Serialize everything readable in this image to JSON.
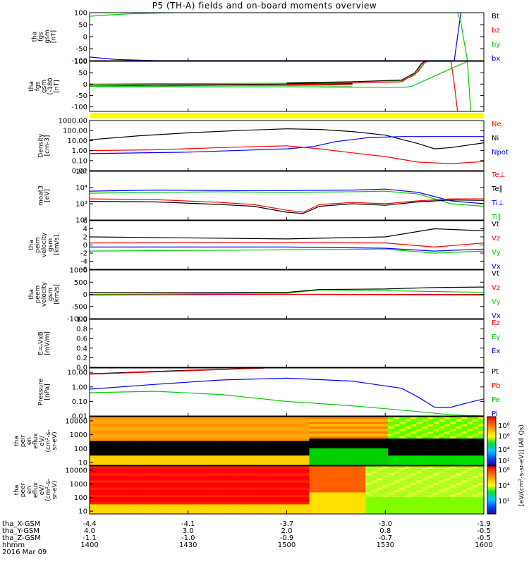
{
  "title": "P5 (TH-A) fields and on-board moments overview",
  "chart_data": {
    "type": "line",
    "panels": [
      {
        "id": "fgs",
        "ylabel": [
          "tha",
          "fgs",
          "gsm",
          "[nT]"
        ],
        "ylim": [
          -100,
          100
        ],
        "yticks": [
          "100",
          "50",
          "0",
          "-50",
          "-100"
        ],
        "ytick_values": [
          100,
          50,
          0,
          -50,
          -100
        ],
        "scale": "linear",
        "legend": [
          {
            "name": "Bt",
            "color": "#000000"
          },
          {
            "name": "bz",
            "color": "#ff0000"
          },
          {
            "name": "by",
            "color": "#00cc00"
          },
          {
            "name": "bx",
            "color": "#0000ff"
          }
        ],
        "series": [
          {
            "name": "by",
            "color": "#00cc00",
            "x": [
              1400,
              1405,
              1412,
              1420,
              1426
            ],
            "y": [
              85,
              90,
              95,
              98,
              100
            ]
          },
          {
            "name": "bx",
            "color": "#0000ff",
            "x": [
              1400,
              1404,
              1408,
              1420,
              1500,
              1540,
              1551,
              1552,
              1553
            ],
            "y": [
              -85,
              -90,
              -95,
              -100,
              -100,
              -100,
              -100,
              0,
              100
            ]
          },
          {
            "name": "by",
            "color": "#00cc00",
            "x": [
              1552,
              1553,
              1554,
              1555
            ],
            "y": [
              100,
              60,
              -20,
              -100
            ]
          }
        ]
      },
      {
        "id": "fgs_zoom",
        "ylabel": [
          "tha",
          "fgs",
          "gsm",
          "(-180",
          "[nT]"
        ],
        "ylim": [
          -120,
          100
        ],
        "yticks": [
          "100",
          "50",
          "0",
          "-50",
          "-100"
        ],
        "ytick_values": [
          100,
          50,
          0,
          -50,
          -100
        ],
        "scale": "linear",
        "legend": [],
        "series": [
          {
            "name": "by",
            "color": "#00cc00",
            "x": [
              1400,
              1420,
              1440,
              1460,
              1480,
              1500,
              1520,
              1535,
              1539,
              1541,
              1542
            ],
            "y": [
              0,
              2,
              3,
              4,
              5,
              6,
              10,
              15,
              40,
              85,
              100
            ]
          },
          {
            "name": "Bt",
            "color": "#000000",
            "x": [
              1400,
              1420,
              1440,
              1460,
              1480,
              1500,
              1520,
              1535,
              1539,
              1541,
              1542
            ],
            "y": [
              -5,
              -3,
              -2,
              0,
              2,
              4,
              10,
              18,
              50,
              90,
              100
            ]
          },
          {
            "name": "bz",
            "color": "#ff0000",
            "x": [
              1400,
              1420,
              1440,
              1460,
              1480,
              1500,
              1520,
              1535,
              1540,
              1542,
              1543,
              1550,
              1551,
              1552
            ],
            "y": [
              -5,
              -8,
              -5,
              -6,
              -3,
              -2,
              5,
              10,
              55,
              95,
              100,
              100,
              0,
              -120
            ]
          },
          {
            "name": "by",
            "color": "#00cc00",
            "x": [
              1400,
              1440,
              1480,
              1510,
              1530,
              1536,
              1538,
              1555,
              1556
            ],
            "y": [
              -10,
              -12,
              -12,
              -13,
              -14,
              -14,
              -10,
              100,
              -120
            ]
          }
        ]
      },
      {
        "id": "mom",
        "ylabel": [
          "Density",
          "[cm-3]"
        ],
        "ylim": [
          0.01,
          1000
        ],
        "yticks": [
          "1000.00",
          "100.00",
          "10.00",
          "1.00",
          "0.10",
          "0.01"
        ],
        "ytick_values": [
          1000,
          100,
          10,
          1,
          0.1,
          0.01
        ],
        "scale": "log",
        "legend": [
          {
            "name": "Ne",
            "color": "#ff0000"
          },
          {
            "name": "Ni",
            "color": "#000000"
          },
          {
            "name": "Npot",
            "color": "#0000ff"
          }
        ],
        "series": [
          {
            "name": "Ni",
            "color": "#000000",
            "x": [
              1400,
              1415,
              1430,
              1445,
              1500,
              1510,
              1520,
              1530,
              1540,
              1545,
              1550,
              1560
            ],
            "y": [
              12,
              30,
              60,
              100,
              150,
              130,
              80,
              35,
              5,
              1.5,
              2,
              6
            ]
          },
          {
            "name": "Npot",
            "color": "#0000ff",
            "x": [
              1400,
              1430,
              1500,
              1508,
              1515,
              1525,
              1535,
              1560
            ],
            "y": [
              0.5,
              0.7,
              1.5,
              2.5,
              8,
              20,
              25,
              25
            ]
          },
          {
            "name": "Ne",
            "color": "#ff0000",
            "x": [
              1400,
              1420,
              1440,
              1500,
              1510,
              1520,
              1530,
              1540,
              1550,
              1560
            ],
            "y": [
              1,
              1.2,
              2,
              3,
              1.5,
              0.6,
              0.25,
              0.07,
              0.05,
              0.08
            ]
          }
        ]
      },
      {
        "id": "temp",
        "ylabel": [
          "moat3",
          "[eV]"
        ],
        "ylim": [
          100,
          100000
        ],
        "yticks": [
          "10⁵",
          "10⁴",
          "10³",
          "10²"
        ],
        "ytick_values": [
          100000,
          10000,
          1000,
          100
        ],
        "scale": "log",
        "legend": [
          {
            "name": "Te⊥",
            "color": "#ff0000"
          },
          {
            "name": "Te∥",
            "color": "#000000"
          },
          {
            "name": "Ti⊥",
            "color": "#0000ff"
          },
          {
            "name": "Ti∥",
            "color": "#00cc00"
          }
        ],
        "series": [
          {
            "name": "Ti⊥",
            "color": "#0000ff",
            "x": [
              1400,
              1420,
              1440,
              1500,
              1520,
              1530,
              1540,
              1550,
              1560
            ],
            "y": [
              6000,
              7000,
              6500,
              6500,
              7000,
              8000,
              5000,
              1500,
              1000
            ]
          },
          {
            "name": "Ti∥",
            "color": "#00cc00",
            "x": [
              1400,
              1420,
              1440,
              1500,
              1520,
              1530,
              1540,
              1550,
              1560
            ],
            "y": [
              4500,
              5000,
              5500,
              5000,
              5500,
              6000,
              4000,
              1000,
              700
            ]
          },
          {
            "name": "Te⊥",
            "color": "#ff0000",
            "x": [
              1400,
              1420,
              1440,
              1450,
              1500,
              1505,
              1510,
              1520,
              1530,
              1540,
              1550,
              1560
            ],
            "y": [
              2000,
              1800,
              1200,
              900,
              400,
              300,
              900,
              1200,
              1000,
              1500,
              2000,
              2000
            ]
          },
          {
            "name": "Te∥",
            "color": "#000000",
            "x": [
              1400,
              1420,
              1440,
              1450,
              1500,
              1505,
              1510,
              1520,
              1530,
              1540,
              1550,
              1560
            ],
            "y": [
              1400,
              1300,
              900,
              700,
              300,
              250,
              700,
              1000,
              800,
              1300,
              1700,
              1600
            ]
          }
        ]
      },
      {
        "id": "vel_pe",
        "ylabel": [
          "tha",
          "peim",
          "velocity",
          "gsm",
          "[km/s]"
        ],
        "ylim": [
          -6,
          6
        ],
        "yticks": [
          "6",
          "4",
          "2",
          "0",
          "-2",
          "-4",
          "-6"
        ],
        "ytick_values": [
          6,
          4,
          2,
          0,
          -2,
          -4,
          -6
        ],
        "scale": "linear",
        "legend": [
          {
            "name": "Vt",
            "color": "#000000"
          },
          {
            "name": "Vz",
            "color": "#ff0000"
          },
          {
            "name": "Vy",
            "color": "#00cc00"
          },
          {
            "name": "Vx",
            "color": "#0000ff"
          }
        ],
        "series": [
          {
            "name": "Vx",
            "color": "#0000ff",
            "x": [
              1400,
              1500,
              1530,
              1545,
              1560
            ],
            "y": [
              -0.5,
              -0.5,
              -0.8,
              -1.5,
              -1
            ]
          },
          {
            "name": "Vy",
            "color": "#00cc00",
            "x": [
              1400,
              1500,
              1530,
              1545,
              1560
            ],
            "y": [
              -1.5,
              -1.2,
              -1,
              -2,
              -1.5
            ]
          },
          {
            "name": "Vz",
            "color": "#ff0000",
            "x": [
              1400,
              1500,
              1530,
              1545,
              1560
            ],
            "y": [
              0.5,
              0.6,
              0.5,
              -0.5,
              0.5
            ]
          },
          {
            "name": "Vt",
            "color": "#000000",
            "x": [
              1400,
              1500,
              1530,
              1545,
              1560
            ],
            "y": [
              2,
              1.5,
              2,
              4,
              3.5
            ]
          }
        ]
      },
      {
        "id": "vel_ee",
        "ylabel": [
          "tha",
          "peem",
          "velocity",
          "gsm",
          "[km/s]"
        ],
        "ylim": [
          -1000,
          1000
        ],
        "yticks": [
          "1000",
          "500",
          "0",
          "-500",
          "-1000"
        ],
        "ytick_values": [
          1000,
          500,
          0,
          -500,
          -1000
        ],
        "scale": "linear",
        "legend": [
          {
            "name": "Vt",
            "color": "#000000"
          },
          {
            "name": "Vz",
            "color": "#ff0000"
          },
          {
            "name": "Vy",
            "color": "#00cc00"
          },
          {
            "name": "Vx",
            "color": "#0000ff"
          }
        ],
        "series": [
          {
            "name": "Vx",
            "color": "#0000ff",
            "x": [
              1400,
              1500,
              1560
            ],
            "y": [
              0,
              0,
              -30
            ]
          },
          {
            "name": "Vy",
            "color": "#00cc00",
            "x": [
              1400,
              1500,
              1510,
              1530,
              1560
            ],
            "y": [
              0,
              50,
              180,
              150,
              80
            ]
          },
          {
            "name": "Vz",
            "color": "#ff0000",
            "x": [
              1400,
              1500,
              1560
            ],
            "y": [
              -30,
              0,
              0
            ]
          },
          {
            "name": "Vt",
            "color": "#000000",
            "x": [
              1400,
              1500,
              1510,
              1530,
              1545,
              1560
            ],
            "y": [
              80,
              80,
              200,
              220,
              280,
              300
            ]
          }
        ]
      },
      {
        "id": "efield",
        "ylabel": [
          "E=-VxB",
          "[mV/m]"
        ],
        "ylim": [
          0,
          1
        ],
        "yticks": [
          "1.0",
          "0.8",
          "0.6",
          "0.4",
          "0.2",
          "0.0"
        ],
        "ytick_values": [
          1,
          0.8,
          0.6,
          0.4,
          0.2,
          0
        ],
        "scale": "linear",
        "legend": [
          {
            "name": "Ez",
            "color": "#ff0000"
          },
          {
            "name": "Ey",
            "color": "#00cc00"
          },
          {
            "name": "Ex",
            "color": "#0000ff"
          }
        ],
        "series": []
      },
      {
        "id": "pressure",
        "ylabel": [
          "Pressure",
          "[nPa]"
        ],
        "ylim": [
          0.01,
          20
        ],
        "yticks": [
          "10.00",
          "1.00",
          "0.10",
          "0.01"
        ],
        "ytick_values": [
          10,
          1,
          0.1,
          0.01
        ],
        "scale": "log",
        "legend": [
          {
            "name": "Pt",
            "color": "#000000"
          },
          {
            "name": "Pb",
            "color": "#ff0000"
          },
          {
            "name": "Pe",
            "color": "#00cc00"
          },
          {
            "name": "Pi",
            "color": "#0000ff"
          }
        ],
        "series": [
          {
            "name": "Pt",
            "color": "#000000",
            "x": [
              1400,
              1430,
              1453
            ],
            "y": [
              8,
              14,
              20
            ]
          },
          {
            "name": "Pb",
            "color": "#ff0000",
            "x": [
              1400,
              1430,
              1453
            ],
            "y": [
              7.5,
              13,
              20
            ]
          },
          {
            "name": "Pi",
            "color": "#0000ff",
            "x": [
              1400,
              1420,
              1440,
              1500,
              1520,
              1535,
              1540,
              1545,
              1550,
              1555,
              1560
            ],
            "y": [
              0.7,
              1.5,
              3,
              4,
              2.5,
              0.8,
              0.2,
              0.04,
              0.04,
              0.08,
              0.15
            ]
          },
          {
            "name": "Pe",
            "color": "#00cc00",
            "x": [
              1400,
              1420,
              1440,
              1500,
              1520,
              1540,
              1550,
              1560
            ],
            "y": [
              0.4,
              0.5,
              0.3,
              0.1,
              0.05,
              0.02,
              0.012,
              0.01
            ]
          }
        ]
      }
    ],
    "spectrograms": [
      {
        "id": "peir",
        "ylabel": [
          "tha",
          "peir",
          "en",
          "eflux",
          "eV/",
          "(cm²-s-",
          "sr-eV)"
        ],
        "yticks": [
          "10000",
          "1000",
          "100",
          "10"
        ],
        "ytick_values": [
          10000,
          1000,
          100,
          10
        ]
      },
      {
        "id": "peer",
        "ylabel": [
          "tha",
          "peer",
          "en",
          "eflux",
          "eV/",
          "(cm²-s-",
          "sr-eV)"
        ],
        "yticks": [
          "10000",
          "1000",
          "100",
          "10"
        ],
        "ytick_values": [
          10000,
          1000,
          100,
          10
        ]
      }
    ],
    "colorbar": {
      "label": "[eV/(cm²-s-sr-eV)] (All Qs)",
      "ticks": [
        "10⁸",
        "10⁶",
        "10⁴",
        "10²",
        "10⁶",
        "10⁴",
        "10²"
      ]
    },
    "x_axis": {
      "xlim": [
        1400,
        1600
      ],
      "tick_values": [
        1400,
        1430,
        1500,
        1530,
        1600
      ],
      "row_labels": [
        "tha_X-GSM",
        "tha_Y-GSM",
        "tha_Z-GSM",
        "hhmm",
        "2016 Mar 09"
      ],
      "rows": [
        [
          "-4.4",
          "-4.1",
          "-3.7",
          "-3.0",
          "-1.9"
        ],
        [
          "4.0",
          "3.0",
          "2.0",
          "0.8",
          "-0.5"
        ],
        [
          "-1.1",
          "-1.0",
          "-0.9",
          "-0.7",
          "-0.5"
        ],
        [
          "1400",
          "1430",
          "1500",
          "1530",
          "1600"
        ]
      ]
    }
  }
}
